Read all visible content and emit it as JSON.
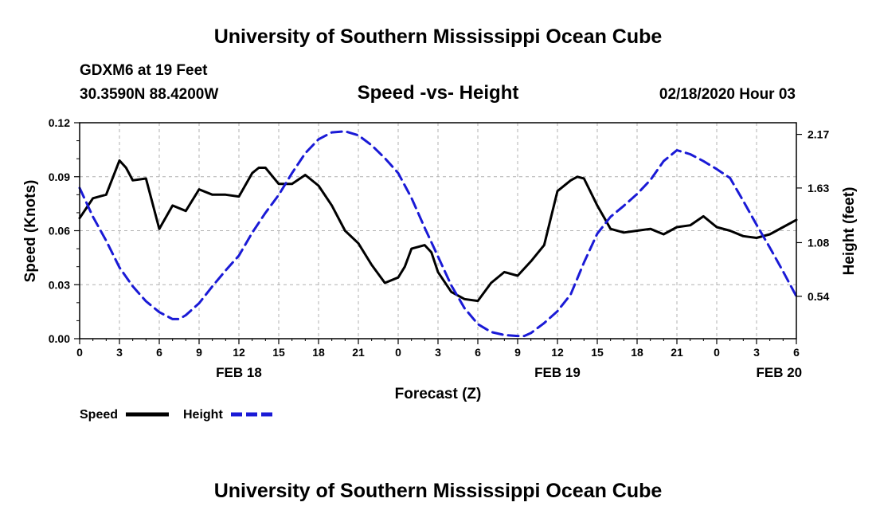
{
  "page": {
    "title_top": "University of Southern Mississippi Ocean Cube",
    "title_bottom": "University of Southern Mississippi Ocean Cube",
    "station": "GDXM6 at 19 Feet",
    "location": "30.3590N 88.4200W",
    "date": "02/18/2020 Hour 03"
  },
  "legend": {
    "speed_label": "Speed",
    "height_label": "Height"
  },
  "colors": {
    "speed": "#000000",
    "height": "#1a1ad6",
    "grid": "#b0b0b0"
  },
  "chart_data": {
    "type": "line",
    "title": "Speed -vs- Height",
    "xlabel": "Forecast (Z)",
    "ylabel": "Speed (Knots)",
    "y2label": "Height (feet)",
    "xlim": [
      0,
      54
    ],
    "ylim": [
      0,
      0.12
    ],
    "y2lim": [
      0.113,
      2.287
    ],
    "x_ticks": [
      0,
      3,
      6,
      9,
      12,
      15,
      18,
      21,
      24,
      27,
      30,
      33,
      36,
      39,
      42,
      45,
      48,
      51,
      54
    ],
    "x_tick_labels": [
      "0",
      "3",
      "6",
      "9",
      "12",
      "15",
      "18",
      "21",
      "0",
      "3",
      "6",
      "9",
      "12",
      "15",
      "18",
      "21",
      "0",
      "3",
      "6"
    ],
    "date_labels": [
      {
        "x": 12,
        "text": "FEB 18"
      },
      {
        "x": 36,
        "text": "FEB 19"
      },
      {
        "x": 52.7,
        "text": "FEB 20"
      }
    ],
    "y_ticks": [
      0,
      0.03,
      0.06,
      0.09,
      0.12
    ],
    "y_tick_labels": [
      "0.00",
      "0.03",
      "0.06",
      "0.09",
      "0.12"
    ],
    "y2_ticks": [
      0.54,
      1.08,
      1.63,
      2.17
    ],
    "y2_tick_labels": [
      "0.54",
      "1.08",
      "1.63",
      "2.17"
    ],
    "series": [
      {
        "name": "Speed",
        "axis": "left",
        "style": "solid",
        "x": [
          0,
          1,
          2,
          3,
          3.5,
          4,
          5,
          6,
          7,
          8,
          9,
          10,
          11,
          12,
          13,
          13.5,
          14,
          15,
          16,
          17,
          18,
          19,
          20,
          21,
          22,
          23,
          24,
          24.5,
          25,
          26,
          26.5,
          27,
          28,
          29,
          30,
          31,
          32,
          33,
          34,
          35,
          36,
          37,
          37.5,
          38,
          39,
          40,
          41,
          42,
          43,
          44,
          45,
          46,
          47,
          48,
          49,
          50,
          51,
          52,
          53,
          54
        ],
        "y": [
          0.067,
          0.078,
          0.08,
          0.099,
          0.095,
          0.088,
          0.089,
          0.061,
          0.074,
          0.071,
          0.083,
          0.08,
          0.08,
          0.079,
          0.092,
          0.095,
          0.095,
          0.086,
          0.086,
          0.091,
          0.085,
          0.074,
          0.06,
          0.053,
          0.041,
          0.031,
          0.034,
          0.04,
          0.05,
          0.052,
          0.048,
          0.037,
          0.026,
          0.022,
          0.021,
          0.031,
          0.037,
          0.035,
          0.043,
          0.052,
          0.082,
          0.088,
          0.09,
          0.089,
          0.074,
          0.061,
          0.059,
          0.06,
          0.061,
          0.058,
          0.062,
          0.063,
          0.068,
          0.062,
          0.06,
          0.057,
          0.056,
          0.058,
          0.062,
          0.066
        ]
      },
      {
        "name": "Height",
        "axis": "right",
        "style": "dashed",
        "x": [
          0,
          1,
          2,
          3,
          4,
          5,
          6,
          7,
          7.5,
          8,
          9,
          10,
          11,
          12,
          13,
          14,
          15,
          16,
          17,
          18,
          19,
          20,
          21,
          22,
          23,
          24,
          25,
          26,
          27,
          28,
          29,
          30,
          31,
          32,
          33,
          33.5,
          34,
          35,
          36,
          37,
          38,
          39,
          40,
          41,
          42,
          43,
          44,
          45,
          46,
          47,
          48,
          49,
          50,
          51,
          52,
          53,
          54
        ],
        "y": [
          1.63,
          1.34,
          1.1,
          0.83,
          0.64,
          0.49,
          0.38,
          0.31,
          0.31,
          0.35,
          0.47,
          0.64,
          0.8,
          0.95,
          1.18,
          1.38,
          1.56,
          1.78,
          1.98,
          2.12,
          2.19,
          2.2,
          2.16,
          2.06,
          1.93,
          1.78,
          1.53,
          1.23,
          0.94,
          0.65,
          0.42,
          0.26,
          0.18,
          0.15,
          0.14,
          0.14,
          0.17,
          0.27,
          0.39,
          0.56,
          0.88,
          1.17,
          1.34,
          1.45,
          1.57,
          1.71,
          1.9,
          2.01,
          1.97,
          1.9,
          1.82,
          1.73,
          1.5,
          1.26,
          1.03,
          0.79,
          0.54
        ]
      }
    ]
  }
}
